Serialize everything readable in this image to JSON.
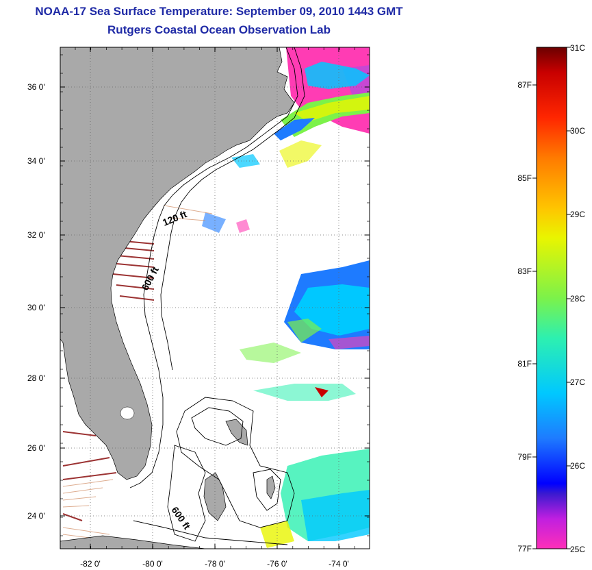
{
  "header": {
    "title": "NOAA-17 Sea Surface Temperature:  September 09, 2010 1443 GMT",
    "subtitle": "Rutgers Coastal Ocean Observation Lab"
  },
  "map": {
    "lat_ticks": [
      "36 0'",
      "34 0'",
      "32 0'",
      "30 0'",
      "28 0'",
      "26 0'",
      "24 0'"
    ],
    "lon_ticks": [
      "-82 0'",
      "-80 0'",
      "-78 0'",
      "-76 0'",
      "-74 0'"
    ],
    "contour_labels": [
      "120 ft",
      "600 ft",
      "600 ft"
    ],
    "colors": {
      "land": "#a9a9a9",
      "ocean_no_data": "#ffffff"
    }
  },
  "colorbar": {
    "celsius_labels": [
      "31C",
      "30C",
      "29C",
      "28C",
      "27C",
      "26C",
      "25C"
    ],
    "fahrenheit_labels": [
      "87F",
      "85F",
      "83F",
      "81F",
      "79F",
      "77F"
    ],
    "range_c": [
      25,
      31
    ],
    "colors": [
      "#ff2fb8",
      "#c01fe0",
      "#3a1ad0",
      "#0000ff",
      "#1e7bff",
      "#00c8ff",
      "#2df0b0",
      "#7cf24a",
      "#e9f500",
      "#ffc400",
      "#ff7a00",
      "#ff2600",
      "#c80000",
      "#6b0000"
    ]
  }
}
